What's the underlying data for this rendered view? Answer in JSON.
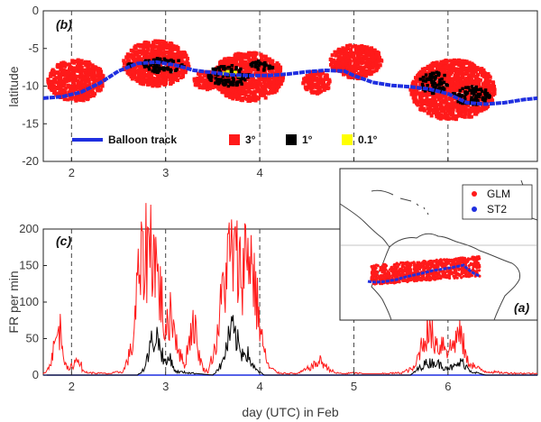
{
  "chart_data": [
    {
      "panel": "(b)",
      "type": "scatter",
      "ylabel": "latitude",
      "xlim": [
        1.7,
        6.95
      ],
      "ylim": [
        -20,
        0
      ],
      "xticks": [
        2,
        3,
        4,
        5,
        6
      ],
      "yticks": [
        0,
        -5,
        -10,
        -15,
        -20
      ],
      "day_markers": [
        2,
        3,
        4,
        5,
        6
      ],
      "legend": [
        "Balloon track",
        "3°",
        "1°",
        "0.1°"
      ],
      "colors": {
        "track": "#1f2fe0",
        "3deg": "#ff1a1a",
        "1deg": "#000000",
        "0.1deg": "#ffff00"
      },
      "series": [
        {
          "name": "Balloon track",
          "x": [
            1.7,
            1.9,
            2.1,
            2.3,
            2.5,
            2.7,
            2.9,
            3.1,
            3.3,
            3.5,
            3.7,
            3.9,
            4.1,
            4.3,
            4.5,
            4.7,
            4.9,
            5.0,
            5.2,
            5.4,
            5.6,
            5.8,
            6.0,
            6.2,
            6.4,
            6.6,
            6.8,
            6.95
          ],
          "y": [
            -11.6,
            -11.4,
            -10.8,
            -9.6,
            -8.0,
            -7.0,
            -6.8,
            -7.2,
            -7.9,
            -8.2,
            -8.5,
            -8.6,
            -8.6,
            -8.4,
            -8.1,
            -7.9,
            -8.0,
            -8.6,
            -9.5,
            -9.9,
            -10.1,
            -10.4,
            -11.0,
            -12.2,
            -12.4,
            -12.2,
            -11.8,
            -11.6
          ]
        },
        {
          "name": "3°",
          "clusters": [
            {
              "x": [
                1.75,
                2.35
              ],
              "y": [
                -12.0,
                -6.5
              ]
            },
            {
              "x": [
                2.55,
                3.25
              ],
              "y": [
                -10.0,
                -4.0
              ]
            },
            {
              "x": [
                3.3,
                3.55
              ],
              "y": [
                -10.5,
                -8.0
              ]
            },
            {
              "x": [
                3.5,
                4.25
              ],
              "y": [
                -12.0,
                -5.5
              ]
            },
            {
              "x": [
                4.45,
                4.75
              ],
              "y": [
                -11.0,
                -8.0
              ]
            },
            {
              "x": [
                4.75,
                5.3
              ],
              "y": [
                -9.0,
                -4.5
              ]
            },
            {
              "x": [
                5.6,
                6.5
              ],
              "y": [
                -14.5,
                -6.5
              ]
            }
          ]
        },
        {
          "name": "1°",
          "clusters": [
            {
              "x": [
                2.6,
                2.65
              ],
              "y": [
                -7.5,
                -6.7
              ]
            },
            {
              "x": [
                2.72,
                3.2
              ],
              "y": [
                -8.2,
                -6.3
              ]
            },
            {
              "x": [
                3.45,
                3.9
              ],
              "y": [
                -10.0,
                -7.2
              ]
            },
            {
              "x": [
                3.9,
                4.15
              ],
              "y": [
                -8.0,
                -6.6
              ]
            },
            {
              "x": [
                5.7,
                6.0
              ],
              "y": [
                -11.0,
                -8.0
              ]
            },
            {
              "x": [
                6.05,
                6.45
              ],
              "y": [
                -12.5,
                -10.0
              ]
            }
          ]
        },
        {
          "name": "0.1°",
          "points": [
            [
              3.62,
              -8.3
            ],
            [
              3.66,
              -8.1
            ],
            [
              3.7,
              -8.5
            ],
            [
              3.74,
              -8.2
            ],
            [
              3.78,
              -8.6
            ]
          ]
        }
      ]
    },
    {
      "panel": "(c)",
      "type": "line",
      "xlabel": "day (UTC) in Feb",
      "ylabel": "FR per min",
      "xlim": [
        1.7,
        6.95
      ],
      "ylim": [
        0,
        200
      ],
      "xticks": [
        2,
        3,
        4,
        5,
        6
      ],
      "yticks": [
        0,
        50,
        100,
        150,
        200
      ],
      "day_markers": [
        2,
        3,
        4,
        5,
        6
      ],
      "colors": {
        "red": "#ff1a1a",
        "black": "#000000",
        "blue": "#1f2fe0"
      },
      "series": [
        {
          "name": "red",
          "x": [
            1.7,
            1.75,
            1.8,
            1.85,
            1.88,
            1.92,
            1.97,
            2.0,
            2.05,
            2.08,
            2.12,
            2.2,
            2.4,
            2.55,
            2.65,
            2.7,
            2.75,
            2.8,
            2.85,
            2.88,
            2.92,
            2.96,
            3.0,
            3.05,
            3.1,
            3.15,
            3.2,
            3.25,
            3.3,
            3.35,
            3.4,
            3.45,
            3.55,
            3.6,
            3.65,
            3.7,
            3.75,
            3.8,
            3.85,
            3.9,
            3.95,
            4.0,
            4.05,
            4.1,
            4.2,
            4.4,
            4.5,
            4.6,
            4.65,
            4.7,
            4.8,
            4.9,
            5.0,
            5.1,
            5.3,
            5.5,
            5.65,
            5.7,
            5.78,
            5.85,
            5.9,
            5.95,
            6.0,
            6.05,
            6.1,
            6.15,
            6.2,
            6.3,
            6.4,
            6.6,
            6.95
          ],
          "y": [
            3,
            8,
            30,
            55,
            62,
            28,
            5,
            12,
            20,
            25,
            5,
            3,
            2,
            5,
            40,
            120,
            150,
            175,
            182,
            170,
            130,
            100,
            50,
            90,
            60,
            30,
            12,
            50,
            75,
            30,
            8,
            5,
            50,
            110,
            150,
            165,
            155,
            140,
            165,
            170,
            120,
            70,
            30,
            10,
            3,
            2,
            8,
            15,
            20,
            12,
            3,
            2,
            3,
            2,
            2,
            3,
            10,
            35,
            60,
            50,
            40,
            45,
            35,
            40,
            55,
            50,
            20,
            10,
            5,
            3,
            2
          ]
        },
        {
          "name": "black",
          "x": [
            1.7,
            2.7,
            2.78,
            2.85,
            2.9,
            2.95,
            3.0,
            3.05,
            3.1,
            3.5,
            3.6,
            3.65,
            3.7,
            3.75,
            3.8,
            3.85,
            3.9,
            3.95,
            4.05,
            5.6,
            5.75,
            5.85,
            5.95,
            6.05,
            6.15,
            6.25,
            6.4,
            6.95
          ],
          "y": [
            0,
            0,
            10,
            45,
            55,
            35,
            15,
            25,
            5,
            0,
            15,
            40,
            62,
            50,
            30,
            35,
            20,
            8,
            0,
            0,
            15,
            18,
            12,
            10,
            18,
            5,
            0,
            0
          ]
        },
        {
          "name": "blue",
          "x": [
            1.7,
            6.95
          ],
          "y": [
            0,
            0
          ]
        }
      ]
    }
  ],
  "inset": {
    "panel": "(a)",
    "legend": [
      "GLM",
      "ST2"
    ],
    "colors": {
      "GLM": "#ff1a1a",
      "ST2": "#1f2fe0"
    }
  }
}
